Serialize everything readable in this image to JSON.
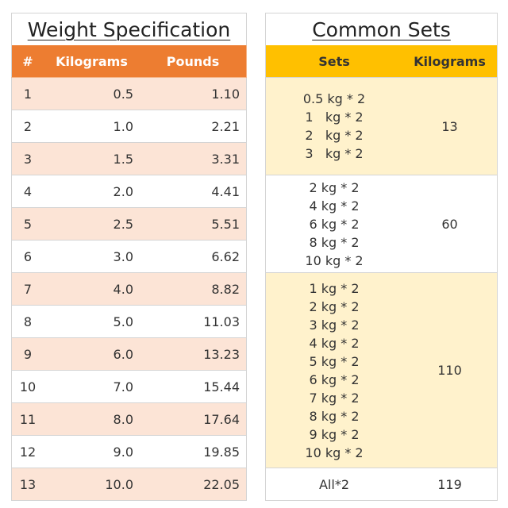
{
  "left_table": {
    "title": "Weight Specification",
    "headers": [
      "#",
      "Kilograms",
      "Pounds"
    ],
    "rows": [
      [
        "1",
        "0.5",
        "1.10"
      ],
      [
        "2",
        "1.0",
        "2.21"
      ],
      [
        "3",
        "1.5",
        "3.31"
      ],
      [
        "4",
        "2.0",
        "4.41"
      ],
      [
        "5",
        "2.5",
        "5.51"
      ],
      [
        "6",
        "3.0",
        "6.62"
      ],
      [
        "7",
        "4.0",
        "8.82"
      ],
      [
        "8",
        "5.0",
        "11.03"
      ],
      [
        "9",
        "6.0",
        "13.23"
      ],
      [
        "10",
        "7.0",
        "15.44"
      ],
      [
        "11",
        "8.0",
        "17.64"
      ],
      [
        "12",
        "9.0",
        "19.85"
      ],
      [
        "13",
        "10.0",
        "22.05"
      ]
    ]
  },
  "right_table": {
    "title": "Common Sets",
    "headers": [
      "Sets",
      "Kilograms"
    ],
    "groups": [
      {
        "sets": [
          "0.5 kg * 2",
          "1   kg * 2",
          "2   kg * 2",
          "3   kg * 2"
        ],
        "kilograms": "13"
      },
      {
        "sets": [
          "2 kg * 2",
          "4 kg * 2",
          "6 kg * 2",
          "8 kg * 2",
          "10 kg * 2"
        ],
        "kilograms": "60"
      },
      {
        "sets": [
          "1 kg * 2",
          "2 kg * 2",
          "3 kg * 2",
          "4 kg * 2",
          "5 kg * 2",
          "6 kg * 2",
          "7 kg * 2",
          "8 kg * 2",
          "9 kg * 2",
          "10 kg * 2"
        ],
        "kilograms": "110"
      },
      {
        "sets": [
          "All*2"
        ],
        "kilograms": "119"
      }
    ]
  }
}
